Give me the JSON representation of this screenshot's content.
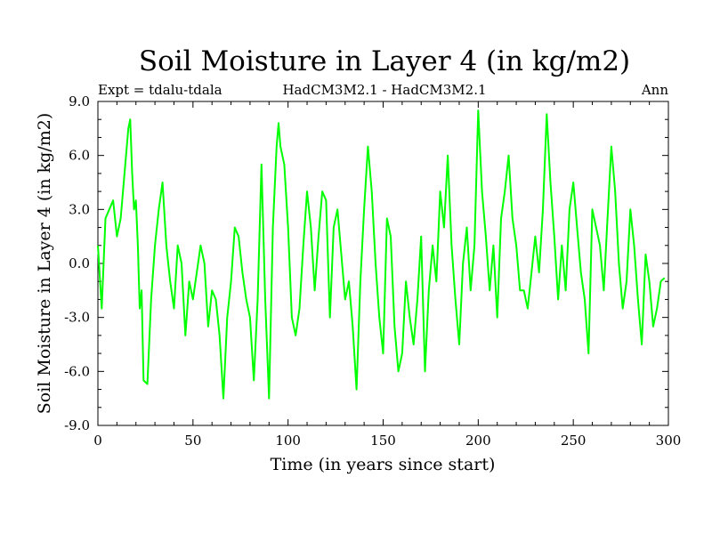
{
  "chart_data": {
    "type": "line",
    "title": "Soil Moisture in Layer 4 (in kg/m2)",
    "subtitle_left": "Expt = tdalu-tdala",
    "subtitle_center": "HadCM3M2.1 - HadCM3M2.1",
    "subtitle_right": "Ann",
    "xlabel": "Time (in years since start)",
    "ylabel": "Soil Moisture in Layer 4 (in kg/m2)",
    "xlim": [
      0,
      300
    ],
    "ylim": [
      -9.0,
      9.0
    ],
    "xticks": [
      "0",
      "50",
      "100",
      "150",
      "200",
      "250",
      "300"
    ],
    "yticks": [
      "-9.0",
      "-6.0",
      "-3.0",
      "0.0",
      "3.0",
      "6.0",
      "9.0"
    ],
    "grid": false,
    "series": [
      {
        "color": "#00ff00",
        "x": [
          0,
          2,
          4,
          6,
          8,
          10,
          12,
          14,
          16,
          17,
          18,
          19,
          20,
          21,
          22,
          23,
          24,
          26,
          28,
          30,
          32,
          34,
          36,
          38,
          40,
          42,
          44,
          46,
          48,
          50,
          52,
          54,
          56,
          58,
          60,
          62,
          64,
          66,
          68,
          70,
          72,
          74,
          76,
          78,
          80,
          82,
          84,
          86,
          88,
          90,
          92,
          94,
          95,
          96,
          98,
          100,
          102,
          104,
          106,
          108,
          110,
          112,
          114,
          116,
          118,
          120,
          122,
          124,
          126,
          128,
          130,
          132,
          134,
          136,
          138,
          140,
          142,
          144,
          146,
          148,
          150,
          152,
          154,
          156,
          158,
          160,
          162,
          164,
          166,
          168,
          170,
          172,
          174,
          176,
          178,
          180,
          182,
          184,
          186,
          188,
          190,
          192,
          194,
          196,
          198,
          200,
          202,
          204,
          206,
          208,
          210,
          212,
          214,
          216,
          218,
          220,
          222,
          224,
          226,
          228,
          230,
          232,
          234,
          236,
          238,
          240,
          242,
          244,
          246,
          248,
          250,
          252,
          254,
          256,
          258,
          260,
          262,
          264,
          266,
          268,
          270,
          272,
          274,
          276,
          278,
          280,
          282,
          284,
          286,
          288,
          290,
          292,
          294,
          296,
          298
        ],
        "y": [
          1.0,
          -2.5,
          2.5,
          3.0,
          3.5,
          1.5,
          2.5,
          5.0,
          7.5,
          8.0,
          5.0,
          3.0,
          3.5,
          1.0,
          -2.5,
          -1.5,
          -6.5,
          -6.7,
          -2.0,
          1.0,
          3.0,
          4.5,
          1.0,
          -1.0,
          -2.5,
          1.0,
          0.0,
          -4.0,
          -1.0,
          -2.0,
          -0.5,
          1.0,
          0.0,
          -3.5,
          -1.5,
          -2.0,
          -4.0,
          -7.5,
          -3.0,
          -1.0,
          2.0,
          1.5,
          -0.5,
          -2.0,
          -3.0,
          -6.5,
          -2.0,
          5.5,
          -2.0,
          -7.5,
          2.0,
          6.5,
          7.8,
          6.5,
          5.5,
          2.0,
          -3.0,
          -4.0,
          -2.5,
          1.0,
          4.0,
          2.0,
          -1.5,
          1.5,
          4.0,
          3.5,
          -3.0,
          2.0,
          3.0,
          0.5,
          -2.0,
          -1.0,
          -3.5,
          -7.0,
          -1.0,
          3.0,
          6.5,
          4.0,
          0.0,
          -3.0,
          -5.0,
          2.5,
          1.5,
          -3.5,
          -6.0,
          -5.0,
          -1.0,
          -3.0,
          -4.5,
          -2.0,
          1.5,
          -6.0,
          -1.5,
          1.0,
          -1.0,
          4.0,
          2.0,
          6.0,
          1.0,
          -2.0,
          -4.5,
          0.0,
          2.0,
          -1.5,
          1.0,
          8.5,
          4.0,
          1.5,
          -1.5,
          1.0,
          -3.0,
          2.5,
          4.0,
          6.0,
          2.5,
          1.0,
          -1.5,
          -1.5,
          -2.5,
          -0.5,
          1.5,
          -0.5,
          3.0,
          8.3,
          4.5,
          1.5,
          -2.0,
          1.0,
          -1.5,
          3.0,
          4.5,
          2.0,
          -0.5,
          -2.0,
          -5.0,
          3.0,
          2.0,
          1.0,
          -1.5,
          2.5,
          6.5,
          4.0,
          0.0,
          -2.5,
          -1.0,
          3.0,
          1.0,
          -2.0,
          -4.5,
          0.5,
          -1.0,
          -3.5,
          -2.5,
          -1.0,
          -0.8
        ]
      }
    ]
  }
}
